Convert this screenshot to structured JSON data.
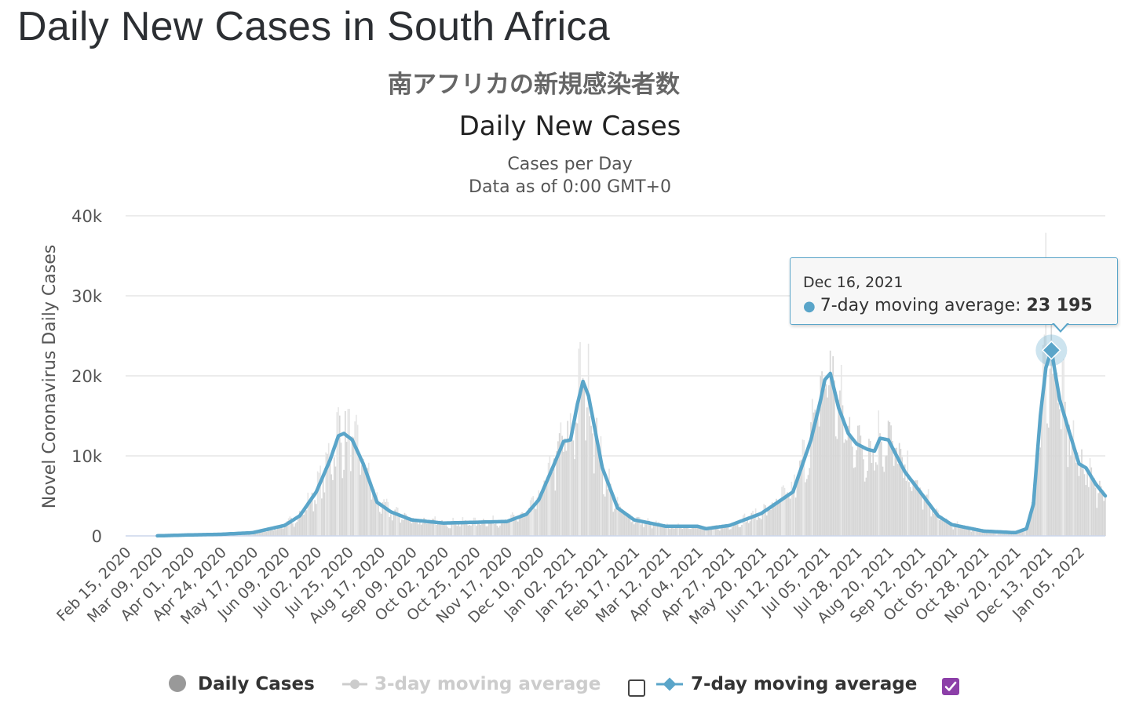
{
  "page": {
    "title": "Daily New Cases in South Africa"
  },
  "chart_data": {
    "type": "bar",
    "title_jp": "南アフリカの新規感染者数",
    "title": "Daily New Cases",
    "subtitle_lines": [
      "Cases per Day",
      "Data as of 0:00 GMT+0"
    ],
    "xlabel": "",
    "ylabel": "Novel Coronavirus Daily Cases",
    "ylim": [
      0,
      40000
    ],
    "yticks": [
      0,
      10000,
      20000,
      30000,
      40000
    ],
    "ytick_labels": [
      "0",
      "10k",
      "20k",
      "30k",
      "40k"
    ],
    "x_start": "Feb 15, 2020",
    "x_end": "Jan 24, 2022",
    "xtick_labels": [
      "Feb 15, 2020",
      "Mar 09, 2020",
      "Apr 01, 2020",
      "Apr 24, 2020",
      "May 17, 2020",
      "Jun 09, 2020",
      "Jul 02, 2020",
      "Jul 25, 2020",
      "Aug 17, 2020",
      "Sep 09, 2020",
      "Oct 02, 2020",
      "Oct 25, 2020",
      "Nov 17, 2020",
      "Dec 10, 2020",
      "Jan 02, 2021",
      "Jan 25, 2021",
      "Feb 17, 2021",
      "Mar 12, 2021",
      "Apr 04, 2021",
      "Apr 27, 2021",
      "May 20, 2021",
      "Jun 12, 2021",
      "Jul 05, 2021",
      "Jul 28, 2021",
      "Aug 20, 2021",
      "Sep 12, 2021",
      "Oct 05, 2021",
      "Oct 28, 2021",
      "Nov 20, 2021",
      "Dec 13, 2021",
      "Jan 05, 2022"
    ],
    "grid": true,
    "legend_placement": "bottom",
    "colors": {
      "bars": "#d6d6d6",
      "bars_peak": "#e6e6e6",
      "ma7": "#5aa5c9",
      "ma3_inactive": "#cccccc",
      "grid": "#e6e6e6",
      "axis": "#ccd6eb"
    },
    "series": [
      {
        "name": "7-day moving average",
        "visible": true,
        "points": [
          [
            "Feb 15, 2020",
            0
          ],
          [
            "Mar 09, 2020",
            10
          ],
          [
            "Apr 01, 2020",
            120
          ],
          [
            "Apr 24, 2020",
            200
          ],
          [
            "May 17, 2020",
            400
          ],
          [
            "Jun 09, 2020",
            1300
          ],
          [
            "Jun 20, 2020",
            2500
          ],
          [
            "Jul 02, 2020",
            5500
          ],
          [
            "Jul 12, 2020",
            9500
          ],
          [
            "Jul 18, 2020",
            12500
          ],
          [
            "Jul 22, 2020",
            12800
          ],
          [
            "Jul 28, 2020",
            12000
          ],
          [
            "Aug 05, 2020",
            9000
          ],
          [
            "Aug 15, 2020",
            4200
          ],
          [
            "Aug 25, 2020",
            3000
          ],
          [
            "Sep 09, 2020",
            2000
          ],
          [
            "Oct 02, 2020",
            1600
          ],
          [
            "Oct 25, 2020",
            1700
          ],
          [
            "Nov 17, 2020",
            1800
          ],
          [
            "Dec 01, 2020",
            2700
          ],
          [
            "Dec 10, 2020",
            4500
          ],
          [
            "Dec 20, 2020",
            8500
          ],
          [
            "Dec 28, 2020",
            11800
          ],
          [
            "Jan 02, 2021",
            12000
          ],
          [
            "Jan 07, 2021",
            16500
          ],
          [
            "Jan 11, 2021",
            19300
          ],
          [
            "Jan 15, 2021",
            17500
          ],
          [
            "Jan 20, 2021",
            13000
          ],
          [
            "Jan 25, 2021",
            8500
          ],
          [
            "Feb 05, 2021",
            3500
          ],
          [
            "Feb 17, 2021",
            2000
          ],
          [
            "Mar 12, 2021",
            1200
          ],
          [
            "Apr 04, 2021",
            1200
          ],
          [
            "Apr 10, 2021",
            900
          ],
          [
            "Apr 27, 2021",
            1300
          ],
          [
            "May 20, 2021",
            2800
          ],
          [
            "Jun 12, 2021",
            5500
          ],
          [
            "Jun 25, 2021",
            12000
          ],
          [
            "Jul 02, 2021",
            17000
          ],
          [
            "Jul 05, 2021",
            19500
          ],
          [
            "Jul 09, 2021",
            20300
          ],
          [
            "Jul 15, 2021",
            16000
          ],
          [
            "Jul 22, 2021",
            12800
          ],
          [
            "Jul 28, 2021",
            11500
          ],
          [
            "Aug 05, 2021",
            10800
          ],
          [
            "Aug 10, 2021",
            10600
          ],
          [
            "Aug 14, 2021",
            12200
          ],
          [
            "Aug 20, 2021",
            12000
          ],
          [
            "Sep 01, 2021",
            8000
          ],
          [
            "Sep 12, 2021",
            5500
          ],
          [
            "Sep 25, 2021",
            2500
          ],
          [
            "Oct 05, 2021",
            1400
          ],
          [
            "Oct 28, 2021",
            600
          ],
          [
            "Nov 20, 2021",
            400
          ],
          [
            "Nov 28, 2021",
            900
          ],
          [
            "Dec 03, 2021",
            4000
          ],
          [
            "Dec 08, 2021",
            15000
          ],
          [
            "Dec 12, 2021",
            21000
          ],
          [
            "Dec 16, 2021",
            23195
          ],
          [
            "Dec 22, 2021",
            17000
          ],
          [
            "Dec 28, 2021",
            13500
          ],
          [
            "Jan 05, 2022",
            9000
          ],
          [
            "Jan 10, 2022",
            8500
          ],
          [
            "Jan 17, 2022",
            6500
          ],
          [
            "Jan 24, 2022",
            5000
          ]
        ]
      }
    ],
    "highlight": {
      "date": "Dec 16, 2021",
      "series": "7-day moving average",
      "value": 23195
    },
    "bar_max": {
      "date": "Dec 12, 2021",
      "value": 37875
    }
  },
  "tooltip": {
    "date": "Dec 16, 2021",
    "series_label": "7-day moving average:",
    "value": "23 195"
  },
  "legend": {
    "daily_cases": "Daily Cases",
    "ma3": "3-day moving average",
    "ma7": "7-day moving average",
    "ma3_checked": false,
    "ma7_checked": true
  }
}
